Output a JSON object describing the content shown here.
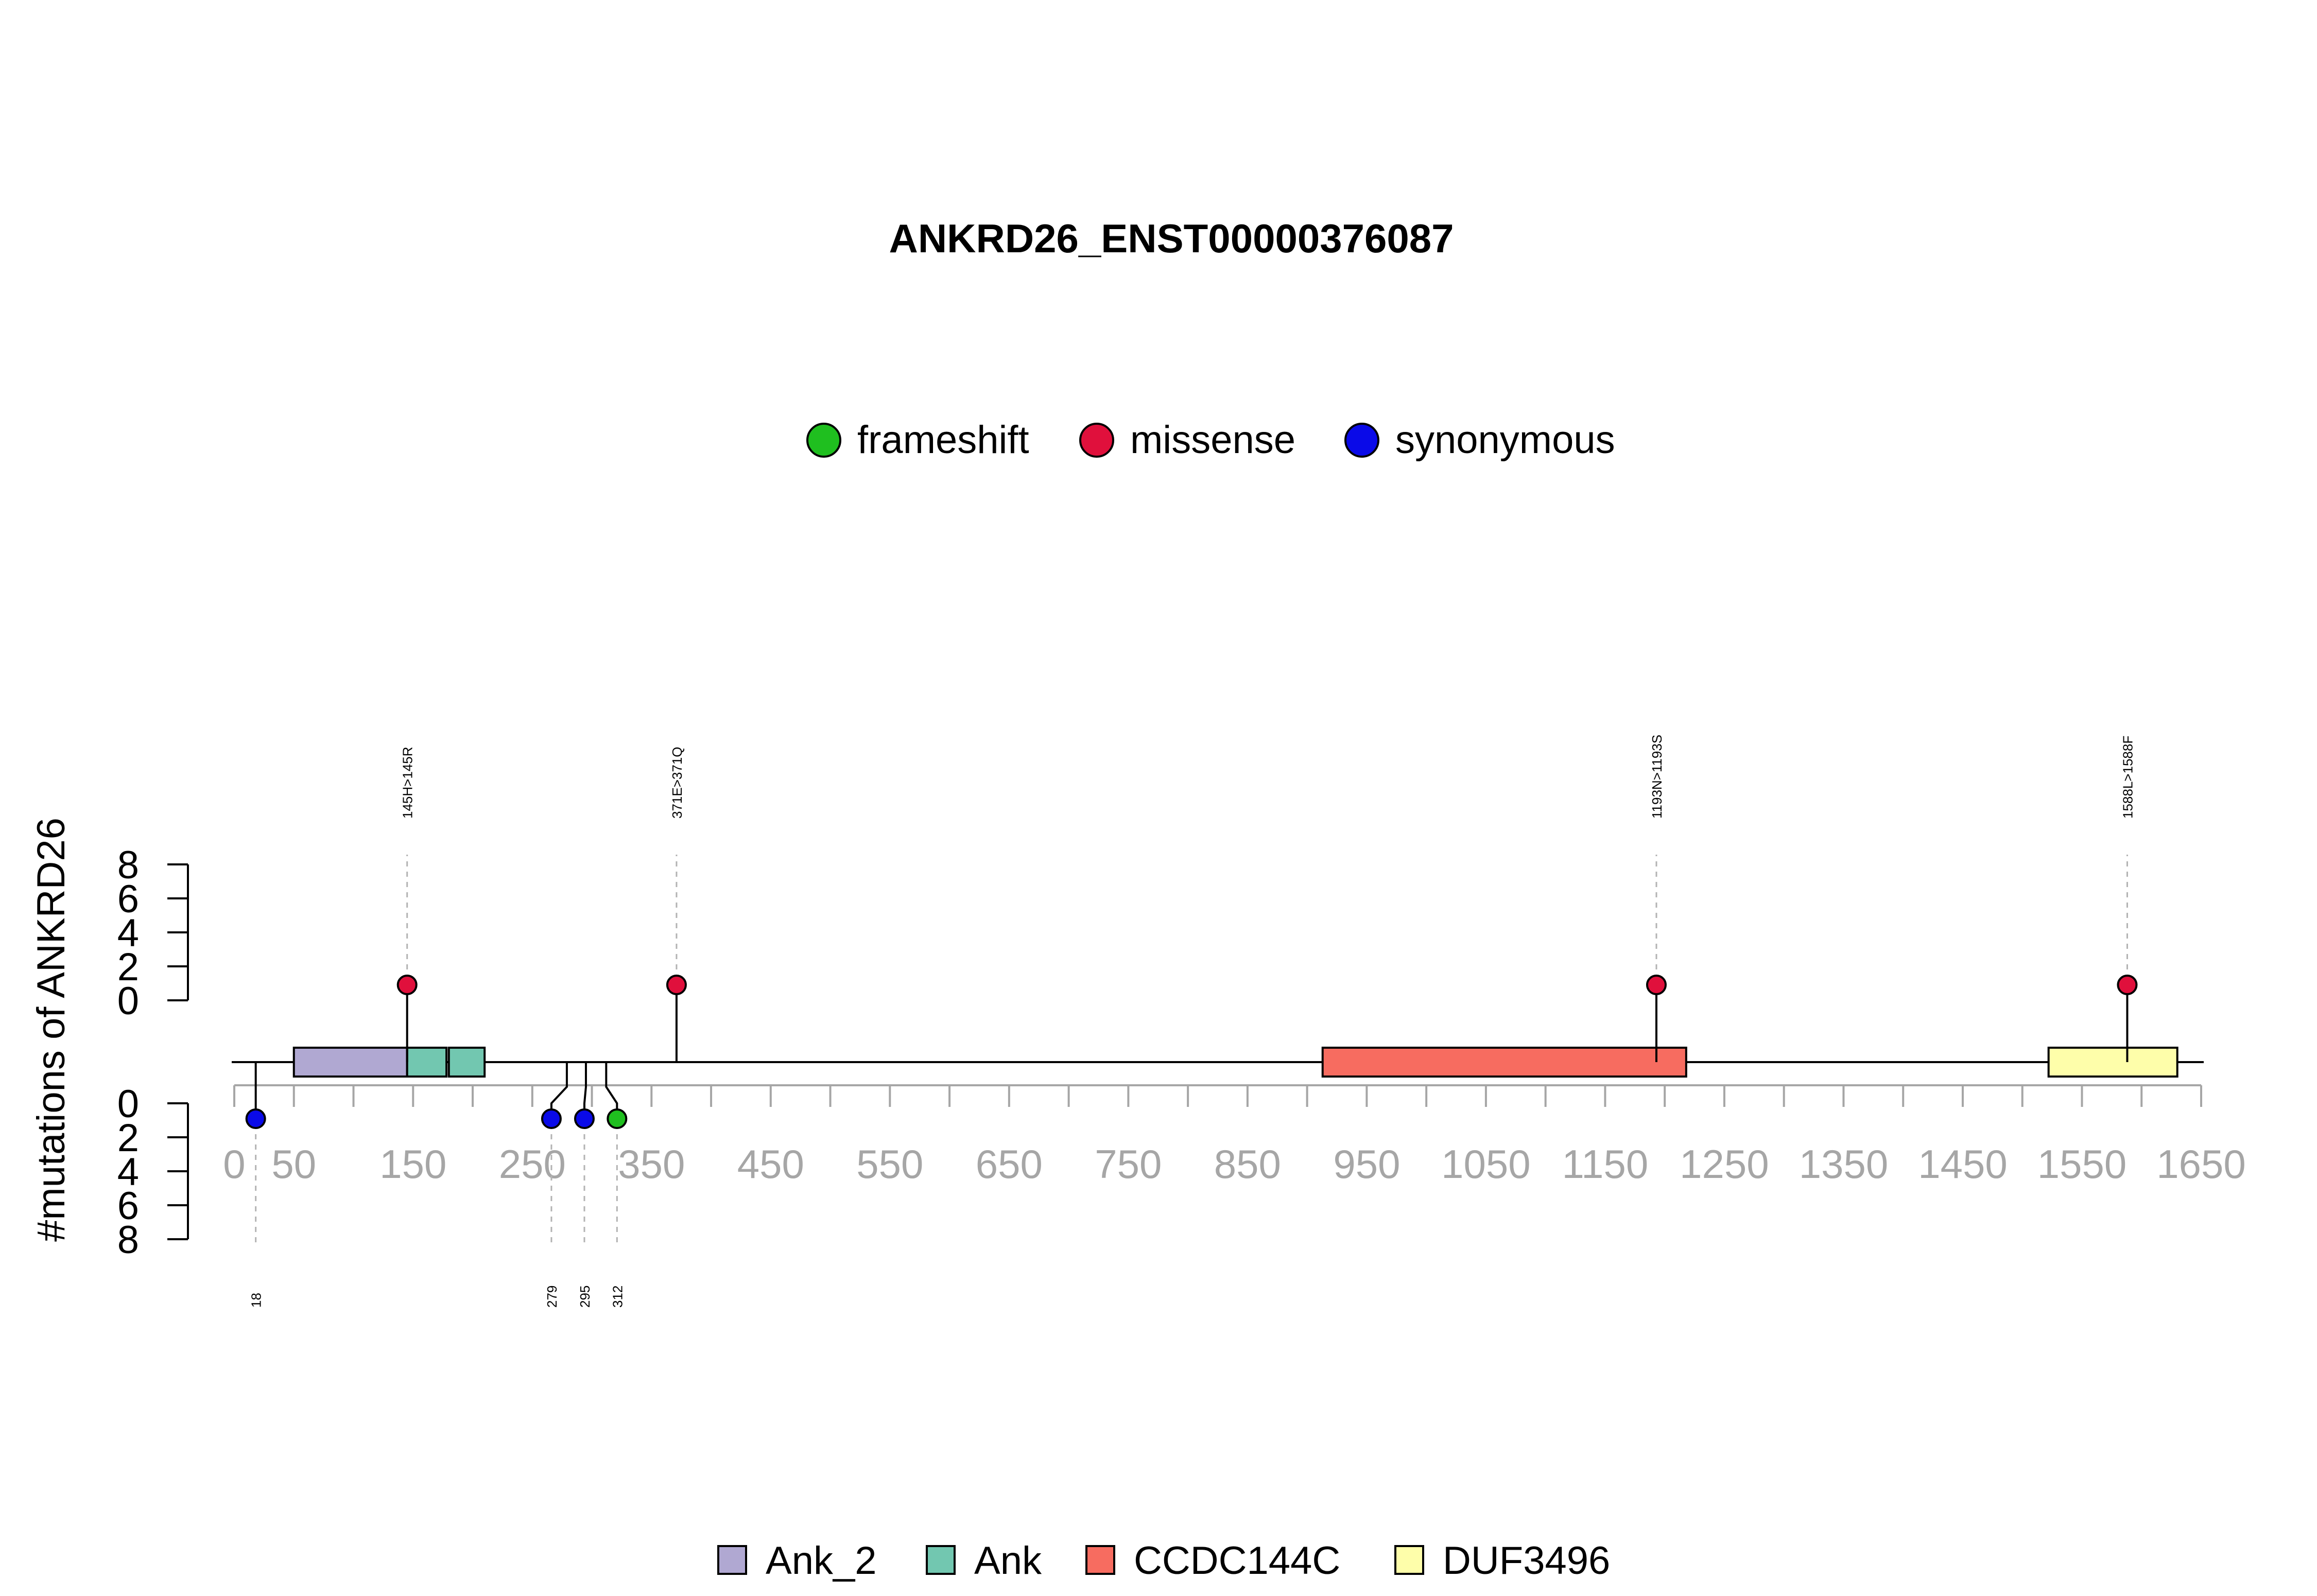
{
  "chart_data": {
    "type": "lollipop",
    "title": "ANKRD26_ENST00000376087",
    "ylabel": "#mutations of ANKRD26",
    "xlim": [
      0,
      1650
    ],
    "x_ticks": [
      0,
      50,
      150,
      250,
      350,
      450,
      550,
      650,
      750,
      850,
      950,
      1050,
      1150,
      1250,
      1350,
      1450,
      1550,
      1650
    ],
    "y_ticks_top": [
      0,
      2,
      4,
      6,
      8
    ],
    "y_ticks_bottom": [
      0,
      2,
      4,
      6,
      8
    ],
    "mutation_legend": [
      {
        "label": "frameshift",
        "color": "#1fbf1f"
      },
      {
        "label": "missense",
        "color": "#e0103c"
      },
      {
        "label": "synonymous",
        "color": "#0a0ae8"
      }
    ],
    "domain_legend": [
      {
        "label": "Ank_2",
        "color": "#b0a8d2"
      },
      {
        "label": "Ank",
        "color": "#72c7b0"
      },
      {
        "label": "CCDC144C",
        "color": "#f76c60"
      },
      {
        "label": "DUF3496",
        "color": "#fefeaa"
      }
    ],
    "domains": [
      {
        "name": "Ank_2",
        "start": 50,
        "end": 145,
        "color": "#b0a8d2"
      },
      {
        "name": "Ank",
        "start": 145,
        "end": 178,
        "color": "#72c7b0"
      },
      {
        "name": "Ank",
        "start": 180,
        "end": 210,
        "color": "#72c7b0"
      },
      {
        "name": "CCDC144C",
        "start": 913,
        "end": 1218,
        "color": "#f76c60"
      },
      {
        "name": "DUF3496",
        "start": 1522,
        "end": 1630,
        "color": "#fefeaa"
      }
    ],
    "mutations_top": [
      {
        "pos": 145,
        "count": 1,
        "type": "missense",
        "label": "145H>145R"
      },
      {
        "pos": 371,
        "count": 1,
        "type": "missense",
        "label": "371E>371Q"
      },
      {
        "pos": 1193,
        "count": 1,
        "type": "missense",
        "label": "1193N>1193S"
      },
      {
        "pos": 1588,
        "count": 1,
        "type": "missense",
        "label": "1588L>1588F"
      }
    ],
    "mutations_bottom": [
      {
        "pos": 18,
        "count": 1,
        "type": "synonymous",
        "label": "18"
      },
      {
        "pos": 279,
        "count": 1,
        "type": "synonymous",
        "label": "279"
      },
      {
        "pos": 295,
        "count": 1,
        "type": "synonymous",
        "label": "295"
      },
      {
        "pos": 312,
        "count": 1,
        "type": "frameshift",
        "label": "312"
      }
    ]
  }
}
